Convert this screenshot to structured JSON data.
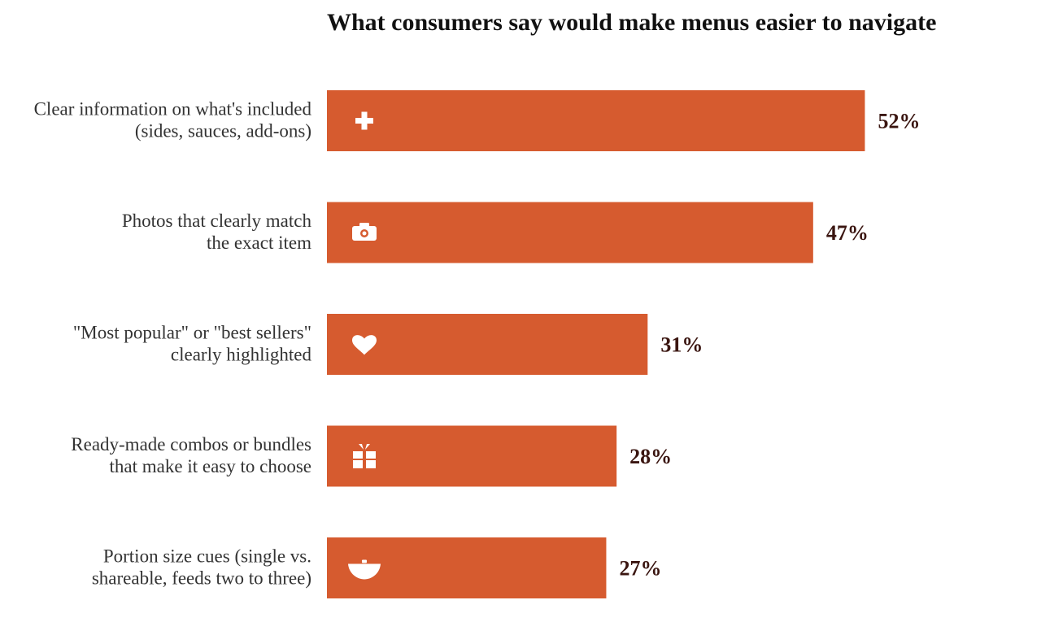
{
  "chart_data": {
    "type": "bar",
    "orientation": "horizontal",
    "title": "What consumers say would make menus easier to navigate",
    "categories": [
      [
        "Clear information on what's included",
        "(sides, sauces, add-ons)"
      ],
      [
        "Photos that clearly match",
        "the exact item"
      ],
      [
        "\"Most popular\" or \"best sellers\"",
        "clearly highlighted"
      ],
      [
        "Ready-made combos or bundles",
        "that make it easy to choose"
      ],
      [
        "Portion size cues (single vs.",
        "shareable, feeds two to three)"
      ]
    ],
    "values": [
      52,
      47,
      31,
      28,
      27
    ],
    "value_labels": [
      "52%",
      "47%",
      "31%",
      "28%",
      "27%"
    ],
    "icons": [
      "plus-icon",
      "camera-icon",
      "heart-icon",
      "gift-icon",
      "bowl-icon"
    ],
    "xlim": [
      0,
      100
    ],
    "xlabel": "",
    "ylabel": "",
    "grid": false,
    "legend": "none"
  },
  "colors": {
    "bar": "#D65B2F",
    "icon": "#FFFFFF",
    "value_text": "#3A1510",
    "label_text": "#333333",
    "title_text": "#111111"
  }
}
